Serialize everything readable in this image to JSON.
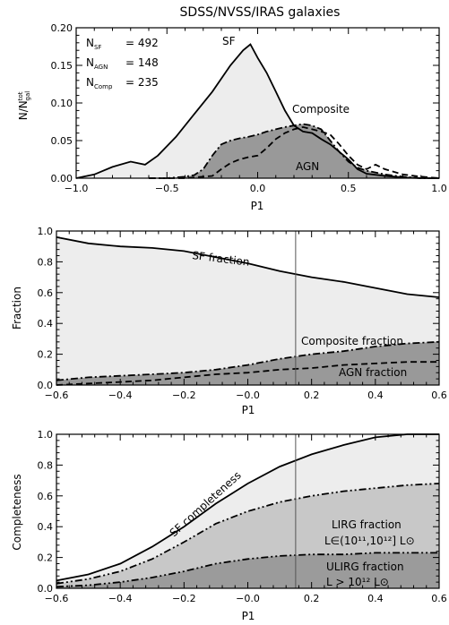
{
  "title": "SDSS/NVSS/IRAS galaxies",
  "chart_data": [
    {
      "type": "area",
      "id": "hist",
      "xlabel": "P1",
      "ylabel": "N/N",
      "ylabel_super": "tot",
      "ylabel_sub": "gal",
      "xlim": [
        -1.0,
        1.0
      ],
      "ylim": [
        0.0,
        0.2
      ],
      "xticks": [
        "−1.0",
        "−0.5",
        "0.0",
        "0.5",
        "1.0"
      ],
      "yticks": [
        "0.00",
        "0.05",
        "0.10",
        "0.15",
        "0.20"
      ],
      "counts": [
        {
          "label": "N",
          "sub": "SF",
          "value": "= 492"
        },
        {
          "label": "N",
          "sub": "AGN",
          "value": "= 148"
        },
        {
          "label": "N",
          "sub": "Comp",
          "value": "= 235"
        }
      ],
      "annotations": {
        "sf": "SF",
        "composite": "Composite",
        "agn": "AGN"
      },
      "series": [
        {
          "name": "SF",
          "style": "solid",
          "fill": "#ededed",
          "x": [
            -1.0,
            -0.9,
            -0.8,
            -0.7,
            -0.62,
            -0.55,
            -0.45,
            -0.35,
            -0.25,
            -0.15,
            -0.08,
            -0.04,
            0.0,
            0.05,
            0.1,
            0.15,
            0.2,
            0.25,
            0.3,
            0.35,
            0.4,
            0.45,
            0.5,
            0.55,
            0.6,
            0.7,
            0.8,
            0.9,
            1.0
          ],
          "values": [
            0.0,
            0.005,
            0.015,
            0.022,
            0.018,
            0.03,
            0.055,
            0.085,
            0.115,
            0.15,
            0.17,
            0.178,
            0.16,
            0.14,
            0.115,
            0.09,
            0.07,
            0.062,
            0.06,
            0.052,
            0.045,
            0.035,
            0.025,
            0.012,
            0.006,
            0.003,
            0.001,
            0.0,
            0.0
          ]
        },
        {
          "name": "Composite",
          "style": "dashdot",
          "fill": "#999999",
          "x": [
            -0.6,
            -0.5,
            -0.4,
            -0.35,
            -0.3,
            -0.25,
            -0.2,
            -0.15,
            -0.1,
            -0.05,
            0.0,
            0.05,
            0.1,
            0.15,
            0.2,
            0.25,
            0.3,
            0.35,
            0.4,
            0.45,
            0.5,
            0.55,
            0.6,
            0.7,
            0.8,
            0.9,
            1.0
          ],
          "values": [
            0.0,
            0.0,
            0.002,
            0.004,
            0.012,
            0.03,
            0.045,
            0.05,
            0.053,
            0.055,
            0.058,
            0.062,
            0.065,
            0.068,
            0.07,
            0.072,
            0.07,
            0.065,
            0.05,
            0.035,
            0.022,
            0.014,
            0.01,
            0.005,
            0.002,
            0.0,
            0.0
          ]
        },
        {
          "name": "AGN",
          "style": "dashed",
          "fill": null,
          "x": [
            -0.6,
            -0.5,
            -0.4,
            -0.3,
            -0.25,
            -0.2,
            -0.15,
            -0.1,
            -0.05,
            0.0,
            0.05,
            0.1,
            0.15,
            0.2,
            0.25,
            0.3,
            0.35,
            0.4,
            0.45,
            0.5,
            0.55,
            0.6,
            0.65,
            0.7,
            0.8,
            0.9,
            1.0
          ],
          "values": [
            0.0,
            0.0,
            0.0,
            0.002,
            0.003,
            0.012,
            0.02,
            0.025,
            0.028,
            0.03,
            0.04,
            0.052,
            0.06,
            0.065,
            0.068,
            0.065,
            0.062,
            0.058,
            0.045,
            0.03,
            0.018,
            0.012,
            0.018,
            0.012,
            0.005,
            0.002,
            0.0
          ]
        }
      ]
    },
    {
      "type": "area",
      "id": "fraction",
      "xlabel": "P1",
      "ylabel": "Fraction",
      "xlim": [
        -0.6,
        0.6
      ],
      "ylim": [
        0.0,
        1.0
      ],
      "xticks": [
        "−0.6",
        "−0.4",
        "−0.2",
        "−0.0",
        "0.2",
        "0.4",
        "0.6"
      ],
      "yticks": [
        "0.0",
        "0.2",
        "0.4",
        "0.6",
        "0.8",
        "1.0"
      ],
      "vline": 0.15,
      "annotations": {
        "sf": "SF fraction",
        "composite": "Composite fraction",
        "agn": "AGN fraction"
      },
      "series": [
        {
          "name": "SF fraction",
          "style": "solid",
          "fill": "#ededed",
          "x": [
            -0.6,
            -0.5,
            -0.4,
            -0.3,
            -0.2,
            -0.1,
            0.0,
            0.1,
            0.2,
            0.3,
            0.4,
            0.5,
            0.6
          ],
          "values": [
            0.96,
            0.92,
            0.9,
            0.89,
            0.87,
            0.83,
            0.79,
            0.74,
            0.7,
            0.67,
            0.63,
            0.59,
            0.57
          ]
        },
        {
          "name": "Composite fraction",
          "style": "dashdot",
          "fill": "#999999",
          "x": [
            -0.6,
            -0.5,
            -0.4,
            -0.3,
            -0.2,
            -0.1,
            0.0,
            0.1,
            0.2,
            0.3,
            0.4,
            0.5,
            0.6
          ],
          "values": [
            0.03,
            0.05,
            0.06,
            0.07,
            0.08,
            0.1,
            0.13,
            0.17,
            0.2,
            0.22,
            0.25,
            0.27,
            0.28
          ]
        },
        {
          "name": "AGN fraction",
          "style": "dashed",
          "fill": null,
          "x": [
            -0.6,
            -0.5,
            -0.4,
            -0.3,
            -0.2,
            -0.1,
            0.0,
            0.1,
            0.2,
            0.3,
            0.4,
            0.5,
            0.6
          ],
          "values": [
            0.0,
            0.01,
            0.02,
            0.03,
            0.05,
            0.07,
            0.08,
            0.1,
            0.11,
            0.13,
            0.14,
            0.15,
            0.15
          ]
        }
      ]
    },
    {
      "type": "area",
      "id": "completeness",
      "xlabel": "P1",
      "ylabel": "Completeness",
      "xlim": [
        -0.6,
        0.6
      ],
      "ylim": [
        0.0,
        1.0
      ],
      "xticks": [
        "−0.6",
        "−0.4",
        "−0.2",
        "−0.0",
        "0.2",
        "0.4",
        "0.6"
      ],
      "yticks": [
        "0.0",
        "0.2",
        "0.4",
        "0.6",
        "0.8",
        "1.0"
      ],
      "vline": 0.15,
      "annotations": {
        "sf": "SF completeness",
        "lirg_1": "LIRG fraction",
        "lirg_2": "L∈(10¹¹,10¹²] L⊙",
        "ulirg_1": "ULIRG fraction",
        "ulirg_2": "L > 10¹² L⊙"
      },
      "series": [
        {
          "name": "SF completeness",
          "style": "solid",
          "fill": "#ededed",
          "x": [
            -0.6,
            -0.5,
            -0.4,
            -0.3,
            -0.2,
            -0.1,
            0.0,
            0.1,
            0.2,
            0.3,
            0.4,
            0.5,
            0.6
          ],
          "values": [
            0.05,
            0.09,
            0.16,
            0.27,
            0.4,
            0.55,
            0.68,
            0.79,
            0.87,
            0.93,
            0.98,
            1.0,
            1.0
          ]
        },
        {
          "name": "LIRG fraction",
          "style": "dashdotdot",
          "fill": "#c8c8c8",
          "x": [
            -0.6,
            -0.5,
            -0.4,
            -0.3,
            -0.2,
            -0.1,
            0.0,
            0.1,
            0.2,
            0.3,
            0.4,
            0.5,
            0.6
          ],
          "values": [
            0.03,
            0.06,
            0.11,
            0.19,
            0.3,
            0.42,
            0.5,
            0.56,
            0.6,
            0.63,
            0.65,
            0.67,
            0.68
          ]
        },
        {
          "name": "ULIRG fraction",
          "style": "dashdotdot",
          "fill": "#9b9b9b",
          "x": [
            -0.6,
            -0.5,
            -0.4,
            -0.3,
            -0.2,
            -0.1,
            0.0,
            0.1,
            0.2,
            0.3,
            0.4,
            0.5,
            0.6
          ],
          "values": [
            0.01,
            0.02,
            0.04,
            0.07,
            0.11,
            0.16,
            0.19,
            0.21,
            0.22,
            0.22,
            0.23,
            0.23,
            0.23
          ]
        }
      ]
    }
  ]
}
